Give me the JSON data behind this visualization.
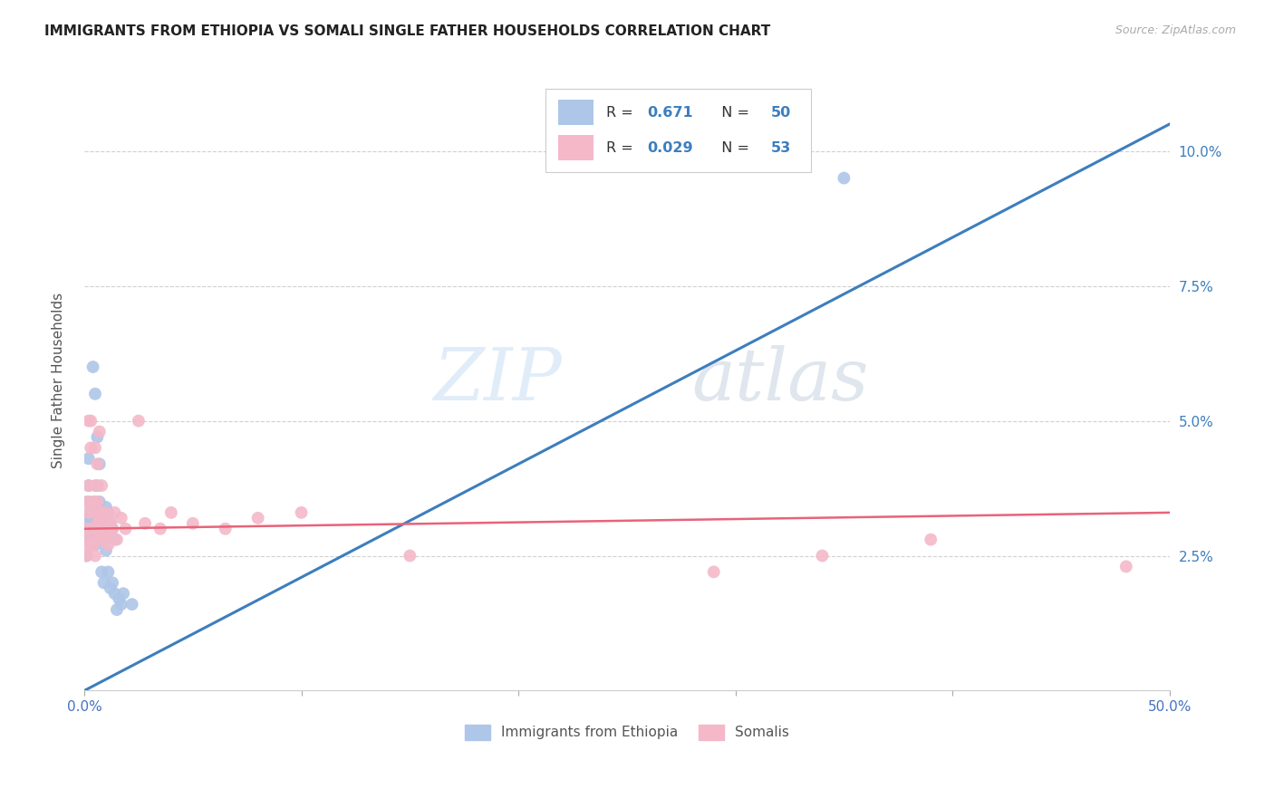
{
  "title": "IMMIGRANTS FROM ETHIOPIA VS SOMALI SINGLE FATHER HOUSEHOLDS CORRELATION CHART",
  "source": "Source: ZipAtlas.com",
  "ylabel": "Single Father Households",
  "xlim": [
    0.0,
    0.5
  ],
  "ylim": [
    0.0,
    0.115
  ],
  "yticks": [
    0.025,
    0.05,
    0.075,
    0.1
  ],
  "ytick_labels": [
    "2.5%",
    "5.0%",
    "7.5%",
    "10.0%"
  ],
  "xticks": [
    0.0,
    0.1,
    0.2,
    0.3,
    0.4,
    0.5
  ],
  "xtick_labels_show": [
    "0.0%",
    "50.0%"
  ],
  "ethiopia_color": "#aec6e8",
  "somali_color": "#f4b8c8",
  "ethiopia_line_color": "#3d7ebd",
  "somali_line_color": "#e8637a",
  "background_color": "#ffffff",
  "watermark_zip": "ZIP",
  "watermark_atlas": "atlas",
  "ethiopia_line": [
    [
      0.0,
      0.0
    ],
    [
      0.5,
      0.105
    ]
  ],
  "somali_line": [
    [
      0.0,
      0.03
    ],
    [
      0.5,
      0.033
    ]
  ],
  "ethiopia_R": "0.671",
  "ethiopia_N": "50",
  "somali_R": "0.029",
  "somali_N": "53",
  "ethiopia_scatter": [
    [
      0.001,
      0.032
    ],
    [
      0.001,
      0.028
    ],
    [
      0.001,
      0.03
    ],
    [
      0.001,
      0.025
    ],
    [
      0.002,
      0.035
    ],
    [
      0.002,
      0.03
    ],
    [
      0.002,
      0.028
    ],
    [
      0.002,
      0.043
    ],
    [
      0.002,
      0.038
    ],
    [
      0.003,
      0.033
    ],
    [
      0.003,
      0.029
    ],
    [
      0.003,
      0.032
    ],
    [
      0.003,
      0.027
    ],
    [
      0.004,
      0.06
    ],
    [
      0.004,
      0.031
    ],
    [
      0.004,
      0.028
    ],
    [
      0.005,
      0.035
    ],
    [
      0.005,
      0.03
    ],
    [
      0.005,
      0.055
    ],
    [
      0.005,
      0.027
    ],
    [
      0.006,
      0.033
    ],
    [
      0.006,
      0.029
    ],
    [
      0.006,
      0.047
    ],
    [
      0.006,
      0.038
    ],
    [
      0.007,
      0.032
    ],
    [
      0.007,
      0.028
    ],
    [
      0.007,
      0.035
    ],
    [
      0.007,
      0.042
    ],
    [
      0.008,
      0.03
    ],
    [
      0.008,
      0.033
    ],
    [
      0.008,
      0.022
    ],
    [
      0.009,
      0.031
    ],
    [
      0.009,
      0.028
    ],
    [
      0.009,
      0.02
    ],
    [
      0.01,
      0.034
    ],
    [
      0.01,
      0.026
    ],
    [
      0.011,
      0.033
    ],
    [
      0.011,
      0.022
    ],
    [
      0.012,
      0.031
    ],
    [
      0.012,
      0.019
    ],
    [
      0.013,
      0.03
    ],
    [
      0.013,
      0.02
    ],
    [
      0.014,
      0.028
    ],
    [
      0.014,
      0.018
    ],
    [
      0.015,
      0.015
    ],
    [
      0.016,
      0.017
    ],
    [
      0.017,
      0.016
    ],
    [
      0.018,
      0.018
    ],
    [
      0.022,
      0.016
    ],
    [
      0.35,
      0.095
    ]
  ],
  "somali_scatter": [
    [
      0.001,
      0.03
    ],
    [
      0.001,
      0.035
    ],
    [
      0.001,
      0.025
    ],
    [
      0.001,
      0.028
    ],
    [
      0.002,
      0.033
    ],
    [
      0.002,
      0.038
    ],
    [
      0.002,
      0.027
    ],
    [
      0.002,
      0.05
    ],
    [
      0.003,
      0.03
    ],
    [
      0.003,
      0.045
    ],
    [
      0.003,
      0.05
    ],
    [
      0.004,
      0.03
    ],
    [
      0.004,
      0.035
    ],
    [
      0.004,
      0.027
    ],
    [
      0.005,
      0.033
    ],
    [
      0.005,
      0.045
    ],
    [
      0.005,
      0.038
    ],
    [
      0.005,
      0.025
    ],
    [
      0.006,
      0.031
    ],
    [
      0.006,
      0.035
    ],
    [
      0.006,
      0.028
    ],
    [
      0.006,
      0.042
    ],
    [
      0.007,
      0.032
    ],
    [
      0.007,
      0.029
    ],
    [
      0.007,
      0.048
    ],
    [
      0.008,
      0.03
    ],
    [
      0.008,
      0.033
    ],
    [
      0.008,
      0.038
    ],
    [
      0.009,
      0.028
    ],
    [
      0.009,
      0.031
    ],
    [
      0.01,
      0.029
    ],
    [
      0.01,
      0.033
    ],
    [
      0.011,
      0.03
    ],
    [
      0.011,
      0.027
    ],
    [
      0.012,
      0.031
    ],
    [
      0.013,
      0.03
    ],
    [
      0.014,
      0.033
    ],
    [
      0.015,
      0.028
    ],
    [
      0.017,
      0.032
    ],
    [
      0.019,
      0.03
    ],
    [
      0.025,
      0.05
    ],
    [
      0.028,
      0.031
    ],
    [
      0.035,
      0.03
    ],
    [
      0.04,
      0.033
    ],
    [
      0.05,
      0.031
    ],
    [
      0.065,
      0.03
    ],
    [
      0.08,
      0.032
    ],
    [
      0.1,
      0.033
    ],
    [
      0.15,
      0.025
    ],
    [
      0.29,
      0.022
    ],
    [
      0.34,
      0.025
    ],
    [
      0.39,
      0.028
    ],
    [
      0.48,
      0.023
    ]
  ]
}
